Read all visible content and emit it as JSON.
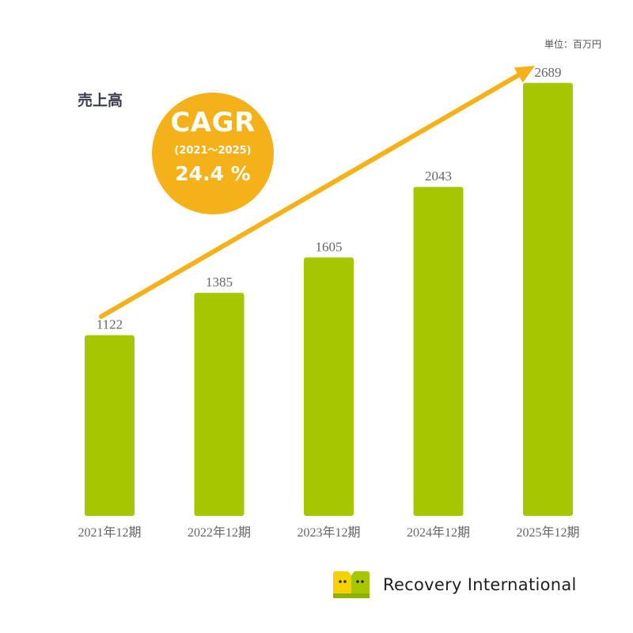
{
  "colors": {
    "bar": "#a5c600",
    "arrow": "#f5b11a",
    "badge": "#f5b11a",
    "value_text": "#666666",
    "tick_text": "#666666",
    "logo_yellow": "#f6d200",
    "logo_green": "#a5c600"
  },
  "unit_label": "単位：百万円",
  "chart_data": {
    "type": "bar",
    "title": "売上高",
    "categories": [
      "2021年12期",
      "2022年12期",
      "2023年12期",
      "2024年12期",
      "2025年12期"
    ],
    "values": [
      1122,
      1385,
      1605,
      2043,
      2689
    ],
    "xlabel": "",
    "ylabel": "",
    "unit": "単位：百万円",
    "ylim": [
      0,
      2850
    ],
    "grid": false,
    "annotations": [
      {
        "type": "trend-arrow",
        "from": "2021年12期",
        "to": "2025年12期"
      }
    ]
  },
  "cagr": {
    "title": "CAGR",
    "period": "(2021～2025)",
    "value": "24.4 %"
  },
  "brand": {
    "name": "Recovery International",
    "logo_icon": "recovery-international-logo-icon"
  }
}
